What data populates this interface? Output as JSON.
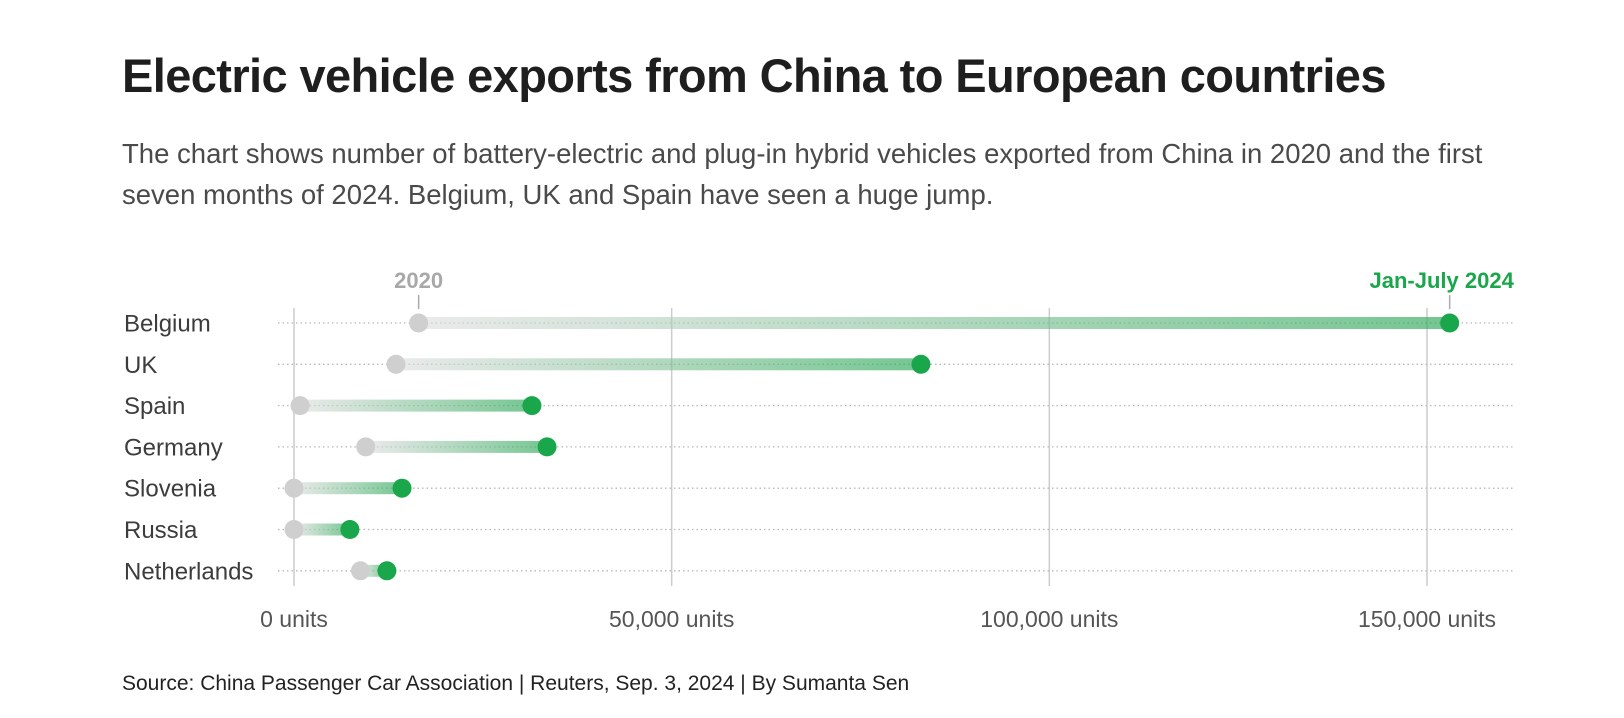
{
  "header": {
    "title": "Electric vehicle exports from China to European countries",
    "subtitle": "The chart shows number of battery-electric and plug-in hybrid vehicles exported from China in 2020 and the first seven months of 2024. Belgium, UK and Spain have seen a huge jump."
  },
  "footer": {
    "source": "Source: China Passenger Car Association | Reuters, Sep. 3, 2024 | By Sumanta Sen"
  },
  "colors": {
    "start": "#cfcfcf",
    "end": "#1aa64b",
    "grid": "#cccccc",
    "row_line": "#b8b8b8"
  },
  "chart_data": {
    "type": "dumbbell",
    "title": "Electric vehicle exports from China to European countries",
    "series": [
      {
        "name": "2020",
        "values": [
          16500,
          13500,
          800,
          9500,
          0,
          0,
          8800
        ]
      },
      {
        "name": "Jan-July 2024",
        "values": [
          153000,
          83000,
          31500,
          33500,
          14300,
          7400,
          12300
        ]
      }
    ],
    "categories": [
      "Belgium",
      "UK",
      "Spain",
      "Germany",
      "Slovenia",
      "Russia",
      "Netherlands"
    ],
    "xlim": [
      0,
      160000
    ],
    "xticks": [
      0,
      50000,
      100000,
      150000
    ],
    "tick_labels": [
      "0 units",
      "50,000 units",
      "100,000 units",
      "150,000 units"
    ],
    "xlabel": "",
    "ylabel": "",
    "legend": "inline above first row"
  }
}
